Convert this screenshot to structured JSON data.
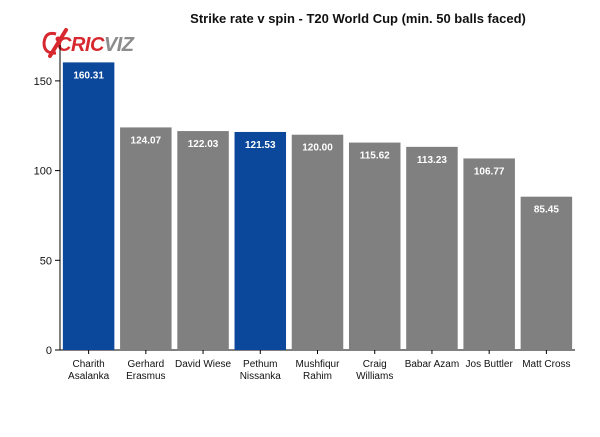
{
  "logo": {
    "text_red": "CRIC",
    "text_gray": "VIZ"
  },
  "colors": {
    "highlight": "#0b479b",
    "default": "#808080",
    "logo_red": "#d8282f",
    "logo_gray": "#8c8c8c",
    "axis": "#000000"
  },
  "chart_data": {
    "type": "bar",
    "title": "Strike rate v spin - T20 World Cup (min. 50 balls faced)",
    "xlabel": "",
    "ylabel": "",
    "ylim": [
      0,
      170
    ],
    "yticks": [
      0,
      50,
      100,
      150
    ],
    "categories": [
      [
        "Charith",
        "Asalanka"
      ],
      [
        "Gerhard",
        "Erasmus"
      ],
      [
        "David Wiese"
      ],
      [
        "Pethum",
        "Nissanka"
      ],
      [
        "Mushfiqur",
        "Rahim"
      ],
      [
        "Craig",
        "Williams"
      ],
      [
        "Babar Azam"
      ],
      [
        "Jos Buttler"
      ],
      [
        "Matt Cross"
      ]
    ],
    "values": [
      160.31,
      124.07,
      122.03,
      121.53,
      120.0,
      115.62,
      113.23,
      106.77,
      85.45
    ],
    "value_labels": [
      "160.31",
      "124.07",
      "122.03",
      "121.53",
      "120.00",
      "115.62",
      "113.23",
      "106.77",
      "85.45"
    ],
    "highlighted": [
      true,
      false,
      false,
      true,
      false,
      false,
      false,
      false,
      false
    ]
  }
}
